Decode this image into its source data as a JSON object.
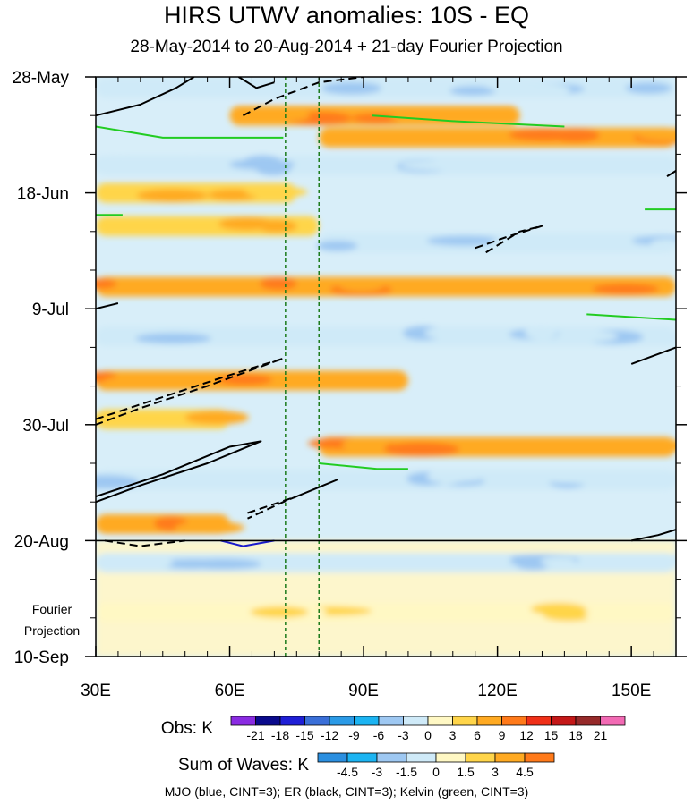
{
  "chart_data": {
    "type": "heatmap",
    "title": "HIRS UTWV anomalies: 10S - EQ",
    "subtitle": "28-May-2014 to 20-Aug-2014 + 21-day Fourier Projection",
    "x_axis": {
      "range": [
        30,
        160
      ],
      "unit": "degrees east",
      "ticks": [
        30,
        60,
        90,
        120,
        150
      ],
      "tick_labels": [
        "30E",
        "60E",
        "90E",
        "120E",
        "150E"
      ]
    },
    "y_axis": {
      "range_days": [
        0,
        105
      ],
      "tick_days": [
        0,
        21,
        42,
        63,
        84,
        105
      ],
      "tick_labels": [
        "28-May",
        "18-Jun",
        "9-Jul",
        "30-Jul",
        "20-Aug",
        "10-Sep"
      ],
      "direction": "time increases downward"
    },
    "projection_label": [
      "Fourier",
      "Projection"
    ],
    "observation_end_day": 84,
    "reference_longitudes": [
      72.5,
      80
    ],
    "obs_colorbar": {
      "label": "Obs: K",
      "levels": [
        -21,
        -18,
        -15,
        -12,
        -9,
        -6,
        -3,
        0,
        3,
        6,
        9,
        12,
        15,
        18,
        21
      ],
      "colors": [
        "#8a2be2",
        "#0a0a8c",
        "#1f1fd6",
        "#3a6fd8",
        "#2b9ae6",
        "#1cb4f2",
        "#9ec8f2",
        "#cfeaf8",
        "#fff8c4",
        "#ffd54a",
        "#ffaa22",
        "#ff7a1a",
        "#f03018",
        "#c41818",
        "#962a2a",
        "#f26ab4"
      ]
    },
    "waves_colorbar": {
      "label": "Sum of Waves: K",
      "levels": [
        -4.5,
        -3,
        -1.5,
        0,
        1.5,
        3,
        4.5
      ],
      "colors": [
        "#2b8fe0",
        "#1cb4f2",
        "#9ec8f2",
        "#cfeaf8",
        "#fff8c4",
        "#ffd54a",
        "#ffaa22",
        "#ff7a1a"
      ]
    },
    "contour_legend": "MJO (blue, CINT=3); ER (black, CINT=3); Kelvin (green, CINT=3)",
    "anomaly_bands": [
      {
        "day": 2,
        "lon_start": 30,
        "lon_end": 160,
        "sign": "mixed",
        "magnitude": 3
      },
      {
        "day": 7,
        "lon_start": 60,
        "lon_end": 125,
        "sign": "positive",
        "magnitude": 6
      },
      {
        "day": 11,
        "lon_start": 80,
        "lon_end": 160,
        "sign": "positive",
        "magnitude": 6
      },
      {
        "day": 16,
        "lon_start": 30,
        "lon_end": 160,
        "sign": "negative",
        "magnitude": 3
      },
      {
        "day": 21,
        "lon_start": 30,
        "lon_end": 75,
        "sign": "positive",
        "magnitude": 3
      },
      {
        "day": 27,
        "lon_start": 30,
        "lon_end": 80,
        "sign": "positive",
        "magnitude": 3
      },
      {
        "day": 30,
        "lon_start": 80,
        "lon_end": 160,
        "sign": "negative",
        "magnitude": 3
      },
      {
        "day": 38,
        "lon_start": 30,
        "lon_end": 160,
        "sign": "positive",
        "magnitude": 6
      },
      {
        "day": 47,
        "lon_start": 30,
        "lon_end": 160,
        "sign": "negative",
        "magnitude": 3
      },
      {
        "day": 55,
        "lon_start": 30,
        "lon_end": 100,
        "sign": "positive",
        "magnitude": 6
      },
      {
        "day": 62,
        "lon_start": 30,
        "lon_end": 60,
        "sign": "positive",
        "magnitude": 3
      },
      {
        "day": 67,
        "lon_start": 80,
        "lon_end": 160,
        "sign": "positive",
        "magnitude": 6
      },
      {
        "day": 73,
        "lon_start": 30,
        "lon_end": 160,
        "sign": "negative",
        "magnitude": 3
      },
      {
        "day": 81,
        "lon_start": 30,
        "lon_end": 60,
        "sign": "positive",
        "magnitude": 6
      },
      {
        "day": 88,
        "lon_start": 30,
        "lon_end": 160,
        "sign": "negative",
        "magnitude": 1.5
      },
      {
        "day": 97,
        "lon_start": 30,
        "lon_end": 160,
        "sign": "positive",
        "magnitude": 1.5
      }
    ],
    "wave_contours": [
      {
        "wave": "ER",
        "color": "#000000",
        "dashed": false,
        "points": [
          [
            30,
            7
          ],
          [
            40,
            5
          ],
          [
            48,
            2
          ],
          [
            52,
            0
          ]
        ]
      },
      {
        "wave": "ER",
        "color": "#000000",
        "dashed": false,
        "points": [
          [
            62,
            0
          ],
          [
            66,
            2
          ],
          [
            70,
            1
          ]
        ]
      },
      {
        "wave": "ER",
        "color": "#000000",
        "dashed": true,
        "points": [
          [
            63,
            7
          ],
          [
            70,
            4
          ],
          [
            80,
            1
          ],
          [
            90,
            0
          ]
        ]
      },
      {
        "wave": "ER",
        "color": "#000000",
        "dashed": true,
        "points": [
          [
            115,
            31
          ],
          [
            122,
            29
          ],
          [
            130,
            27
          ],
          [
            125,
            28
          ],
          [
            117,
            32
          ]
        ]
      },
      {
        "wave": "ER",
        "color": "#000000",
        "dashed": false,
        "points": [
          [
            30,
            42
          ],
          [
            35,
            41
          ]
        ]
      },
      {
        "wave": "ER",
        "color": "#000000",
        "dashed": true,
        "points": [
          [
            30,
            62
          ],
          [
            45,
            58
          ],
          [
            60,
            54
          ],
          [
            72,
            51
          ],
          [
            55,
            56
          ],
          [
            40,
            60
          ],
          [
            30,
            63
          ]
        ]
      },
      {
        "wave": "ER",
        "color": "#000000",
        "dashed": false,
        "points": [
          [
            30,
            76
          ],
          [
            45,
            72
          ],
          [
            60,
            67
          ],
          [
            67,
            66
          ],
          [
            55,
            70
          ],
          [
            40,
            74
          ],
          [
            30,
            77
          ]
        ]
      },
      {
        "wave": "ER",
        "color": "#000000",
        "dashed": true,
        "points": [
          [
            64,
            79
          ],
          [
            75,
            76
          ],
          [
            84,
            73
          ],
          [
            72,
            77
          ],
          [
            64,
            80
          ]
        ]
      },
      {
        "wave": "ER",
        "color": "#000000",
        "dashed": true,
        "points": [
          [
            32,
            84
          ],
          [
            40,
            85
          ],
          [
            50,
            84
          ]
        ]
      },
      {
        "wave": "ER",
        "color": "#000000",
        "dashed": false,
        "points": [
          [
            150,
            52
          ],
          [
            160,
            49
          ]
        ]
      },
      {
        "wave": "ER",
        "color": "#000000",
        "dashed": false,
        "points": [
          [
            150,
            84
          ],
          [
            156,
            83
          ],
          [
            160,
            82
          ]
        ]
      },
      {
        "wave": "ER",
        "color": "#000000",
        "dashed": false,
        "points": [
          [
            158,
            18
          ],
          [
            160,
            17
          ]
        ]
      },
      {
        "wave": "MJO",
        "color": "#1a1acc",
        "dashed": false,
        "points": [
          [
            58,
            84
          ],
          [
            63,
            85
          ],
          [
            70,
            84
          ]
        ]
      },
      {
        "wave": "Kelvin",
        "color": "#22cc22",
        "dashed": false,
        "points": [
          [
            30,
            9
          ],
          [
            45,
            11
          ],
          [
            72,
            11
          ]
        ]
      },
      {
        "wave": "Kelvin",
        "color": "#22cc22",
        "dashed": false,
        "points": [
          [
            92,
            7
          ],
          [
            110,
            8
          ],
          [
            135,
            9
          ]
        ]
      },
      {
        "wave": "Kelvin",
        "color": "#22cc22",
        "dashed": false,
        "points": [
          [
            140,
            43
          ],
          [
            160,
            44
          ]
        ]
      },
      {
        "wave": "Kelvin",
        "color": "#22cc22",
        "dashed": false,
        "points": [
          [
            80,
            70
          ],
          [
            93,
            71
          ],
          [
            100,
            71
          ]
        ]
      },
      {
        "wave": "Kelvin",
        "color": "#22cc22",
        "dashed": false,
        "points": [
          [
            30,
            25
          ],
          [
            36,
            25
          ]
        ]
      },
      {
        "wave": "Kelvin",
        "color": "#22cc22",
        "dashed": false,
        "points": [
          [
            153,
            24
          ],
          [
            160,
            24
          ]
        ]
      }
    ]
  }
}
